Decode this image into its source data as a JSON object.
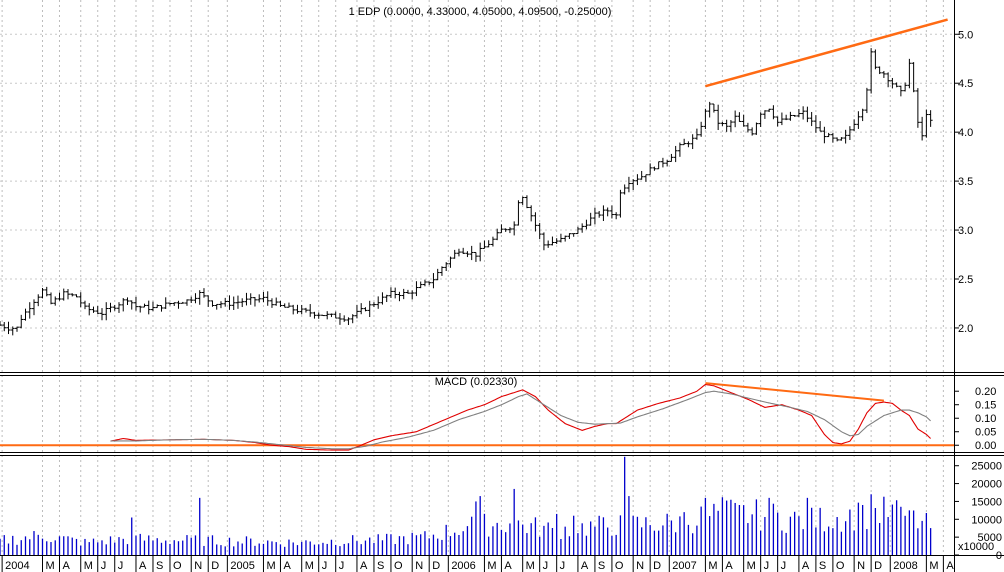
{
  "chart_data": [
    {
      "type": "ohlc",
      "title": "1 EDP (0.0000, 4.33000, 4.05000, 4.09500, -0.25000)",
      "ylim": [
        1.55,
        5.35
      ],
      "yticks": [
        2.0,
        2.5,
        3.0,
        3.5,
        4.0,
        4.5,
        5.0
      ],
      "grid": true,
      "trendline": {
        "from": [
          166,
          4.47
        ],
        "to": [
          223,
          5.15
        ],
        "color": "#ff6a13"
      },
      "anchors": [
        [
          0,
          2.03
        ],
        [
          2,
          2.0
        ],
        [
          4,
          2.0
        ],
        [
          5,
          2.1
        ],
        [
          8,
          2.28
        ],
        [
          10,
          2.38
        ],
        [
          12,
          2.25
        ],
        [
          15,
          2.35
        ],
        [
          18,
          2.32
        ],
        [
          20,
          2.2
        ],
        [
          24,
          2.15
        ],
        [
          26,
          2.2
        ],
        [
          28,
          2.25
        ],
        [
          30,
          2.3
        ],
        [
          32,
          2.22
        ],
        [
          36,
          2.2
        ],
        [
          40,
          2.25
        ],
        [
          44,
          2.28
        ],
        [
          47,
          2.35
        ],
        [
          50,
          2.25
        ],
        [
          54,
          2.25
        ],
        [
          58,
          2.28
        ],
        [
          62,
          2.3
        ],
        [
          66,
          2.22
        ],
        [
          70,
          2.18
        ],
        [
          74,
          2.15
        ],
        [
          78,
          2.12
        ],
        [
          82,
          2.1
        ],
        [
          84,
          2.15
        ],
        [
          88,
          2.25
        ],
        [
          92,
          2.35
        ],
        [
          96,
          2.35
        ],
        [
          98,
          2.4
        ],
        [
          102,
          2.5
        ],
        [
          104,
          2.62
        ],
        [
          108,
          2.8
        ],
        [
          112,
          2.75
        ],
        [
          116,
          2.9
        ],
        [
          118,
          3.0
        ],
        [
          121,
          3.05
        ],
        [
          122,
          3.3
        ],
        [
          123,
          3.35
        ],
        [
          124,
          3.25
        ],
        [
          126,
          3.05
        ],
        [
          128,
          2.85
        ],
        [
          132,
          2.9
        ],
        [
          136,
          3.0
        ],
        [
          140,
          3.15
        ],
        [
          143,
          3.2
        ],
        [
          145,
          3.15
        ],
        [
          146,
          3.4
        ],
        [
          148,
          3.5
        ],
        [
          151,
          3.55
        ],
        [
          154,
          3.65
        ],
        [
          157,
          3.72
        ],
        [
          160,
          3.85
        ],
        [
          162,
          3.9
        ],
        [
          164,
          3.95
        ],
        [
          166,
          4.2
        ],
        [
          167,
          4.3
        ],
        [
          169,
          4.1
        ],
        [
          171,
          4.05
        ],
        [
          173,
          4.15
        ],
        [
          175,
          4.05
        ],
        [
          177,
          4.0
        ],
        [
          179,
          4.2
        ],
        [
          181,
          4.25
        ],
        [
          183,
          4.1
        ],
        [
          186,
          4.15
        ],
        [
          189,
          4.2
        ],
        [
          191,
          4.1
        ],
        [
          193,
          4.0
        ],
        [
          195,
          3.95
        ],
        [
          197,
          3.9
        ],
        [
          199,
          3.95
        ],
        [
          201,
          4.1
        ],
        [
          203,
          4.25
        ],
        [
          204,
          4.45
        ],
        [
          205,
          4.8
        ],
        [
          206,
          4.65
        ],
        [
          208,
          4.6
        ],
        [
          210,
          4.5
        ],
        [
          212,
          4.4
        ],
        [
          213,
          4.5
        ],
        [
          214,
          4.7
        ],
        [
          215,
          4.4
        ],
        [
          216,
          4.1
        ],
        [
          217,
          3.95
        ],
        [
          218,
          4.2
        ],
        [
          219,
          4.1
        ]
      ]
    },
    {
      "type": "line",
      "title": "MACD (0.02330)",
      "ylim": [
        -0.025,
        0.26
      ],
      "yticks": [
        "0.20",
        "0.15",
        "0.10",
        "0.05",
        "0.00"
      ],
      "zero_line_color": "#ff6a13",
      "trendline": {
        "from": [
          166,
          0.23
        ],
        "to": [
          208,
          0.165
        ],
        "color": "#ff6a13"
      },
      "series": [
        {
          "color": "#e00000",
          "anchors": [
            [
              26,
              0.015
            ],
            [
              29,
              0.025
            ],
            [
              32,
              0.018
            ],
            [
              40,
              0.02
            ],
            [
              48,
              0.022
            ],
            [
              55,
              0.018
            ],
            [
              60,
              0.01
            ],
            [
              64,
              0.0
            ],
            [
              68,
              -0.005
            ],
            [
              72,
              -0.015
            ],
            [
              78,
              -0.018
            ],
            [
              82,
              -0.018
            ],
            [
              85,
              0.0
            ],
            [
              88,
              0.02
            ],
            [
              92,
              0.035
            ],
            [
              98,
              0.05
            ],
            [
              104,
              0.09
            ],
            [
              110,
              0.13
            ],
            [
              114,
              0.15
            ],
            [
              118,
              0.18
            ],
            [
              121,
              0.195
            ],
            [
              123,
              0.205
            ],
            [
              126,
              0.18
            ],
            [
              129,
              0.13
            ],
            [
              133,
              0.08
            ],
            [
              137,
              0.055
            ],
            [
              140,
              0.07
            ],
            [
              143,
              0.08
            ],
            [
              145,
              0.08
            ],
            [
              147,
              0.1
            ],
            [
              150,
              0.13
            ],
            [
              155,
              0.155
            ],
            [
              160,
              0.175
            ],
            [
              164,
              0.2
            ],
            [
              166,
              0.225
            ],
            [
              168,
              0.22
            ],
            [
              172,
              0.195
            ],
            [
              176,
              0.17
            ],
            [
              180,
              0.14
            ],
            [
              184,
              0.15
            ],
            [
              188,
              0.13
            ],
            [
              191,
              0.11
            ],
            [
              194,
              0.04
            ],
            [
              196,
              0.01
            ],
            [
              198,
              0.005
            ],
            [
              200,
              0.015
            ],
            [
              202,
              0.06
            ],
            [
              204,
              0.12
            ],
            [
              206,
              0.155
            ],
            [
              208,
              0.16
            ],
            [
              210,
              0.155
            ],
            [
              212,
              0.13
            ],
            [
              214,
              0.11
            ],
            [
              216,
              0.06
            ],
            [
              218,
              0.04
            ],
            [
              219,
              0.025
            ]
          ]
        },
        {
          "color": "#808080",
          "anchors": [
            [
              26,
              0.016
            ],
            [
              32,
              0.016
            ],
            [
              40,
              0.02
            ],
            [
              48,
              0.022
            ],
            [
              55,
              0.018
            ],
            [
              60,
              0.012
            ],
            [
              66,
              0.002
            ],
            [
              72,
              -0.008
            ],
            [
              78,
              -0.013
            ],
            [
              82,
              -0.013
            ],
            [
              86,
              -0.004
            ],
            [
              90,
              0.012
            ],
            [
              96,
              0.03
            ],
            [
              102,
              0.055
            ],
            [
              108,
              0.095
            ],
            [
              114,
              0.125
            ],
            [
              118,
              0.15
            ],
            [
              122,
              0.18
            ],
            [
              124,
              0.19
            ],
            [
              128,
              0.15
            ],
            [
              132,
              0.11
            ],
            [
              136,
              0.085
            ],
            [
              140,
              0.078
            ],
            [
              146,
              0.082
            ],
            [
              150,
              0.105
            ],
            [
              156,
              0.135
            ],
            [
              162,
              0.17
            ],
            [
              166,
              0.195
            ],
            [
              168,
              0.2
            ],
            [
              172,
              0.19
            ],
            [
              176,
              0.175
            ],
            [
              180,
              0.16
            ],
            [
              186,
              0.14
            ],
            [
              190,
              0.125
            ],
            [
              194,
              0.095
            ],
            [
              198,
              0.05
            ],
            [
              200,
              0.035
            ],
            [
              202,
              0.04
            ],
            [
              204,
              0.07
            ],
            [
              208,
              0.11
            ],
            [
              212,
              0.13
            ],
            [
              214,
              0.13
            ],
            [
              216,
              0.12
            ],
            [
              218,
              0.105
            ],
            [
              219,
              0.09
            ]
          ]
        }
      ]
    },
    {
      "type": "bar",
      "title": "",
      "ylim": [
        0,
        28000
      ],
      "yticks": [
        "25000",
        "20000",
        "15000",
        "10000",
        "5000",
        "0"
      ],
      "unit_label": "x10000",
      "color": "#0000cc",
      "levels": [
        [
          0,
          4000
        ],
        [
          10,
          5500
        ],
        [
          20,
          3500
        ],
        [
          30,
          4500
        ],
        [
          40,
          4200
        ],
        [
          50,
          4000
        ],
        [
          60,
          3800
        ],
        [
          70,
          3500
        ],
        [
          80,
          4000
        ],
        [
          90,
          4200
        ],
        [
          100,
          5000
        ],
        [
          110,
          8000
        ],
        [
          120,
          9000
        ],
        [
          130,
          7000
        ],
        [
          140,
          8000
        ],
        [
          150,
          8500
        ],
        [
          160,
          9000
        ],
        [
          170,
          12000
        ],
        [
          180,
          11000
        ],
        [
          190,
          9500
        ],
        [
          200,
          11000
        ],
        [
          210,
          12000
        ],
        [
          219,
          8000
        ]
      ],
      "spikes": [
        [
          31,
          10500
        ],
        [
          47,
          16000
        ],
        [
          112,
          15000
        ],
        [
          113,
          16500
        ],
        [
          121,
          18500
        ],
        [
          131,
          11500
        ],
        [
          135,
          11000
        ],
        [
          147,
          27500
        ],
        [
          148,
          16500
        ],
        [
          161,
          12000
        ],
        [
          166,
          16000
        ],
        [
          174,
          14000
        ],
        [
          181,
          16000
        ],
        [
          190,
          16000
        ],
        [
          203,
          14000
        ],
        [
          205,
          17000
        ],
        [
          212,
          13500
        ],
        [
          214,
          12500
        ]
      ]
    }
  ],
  "x_axis": {
    "labels": [
      {
        "text": "2004",
        "w": 0.5
      },
      {
        "text": "M",
        "w": 10
      },
      {
        "text": "A",
        "w": 14
      },
      {
        "text": "M",
        "w": 19
      },
      {
        "text": "J",
        "w": 23
      },
      {
        "text": "J",
        "w": 27
      },
      {
        "text": "A",
        "w": 32
      },
      {
        "text": "S",
        "w": 36
      },
      {
        "text": "O",
        "w": 40
      },
      {
        "text": "N",
        "w": 45
      },
      {
        "text": "D",
        "w": 49
      },
      {
        "text": "2005",
        "w": 53.5
      },
      {
        "text": "M",
        "w": 62
      },
      {
        "text": "A",
        "w": 66
      },
      {
        "text": "M",
        "w": 71
      },
      {
        "text": "J",
        "w": 75
      },
      {
        "text": "J",
        "w": 79
      },
      {
        "text": "A",
        "w": 84
      },
      {
        "text": "S",
        "w": 88
      },
      {
        "text": "O",
        "w": 92
      },
      {
        "text": "N",
        "w": 97
      },
      {
        "text": "D",
        "w": 101
      },
      {
        "text": "2006",
        "w": 105.5
      },
      {
        "text": "M",
        "w": 114
      },
      {
        "text": "A",
        "w": 118
      },
      {
        "text": "M",
        "w": 123
      },
      {
        "text": "J",
        "w": 127
      },
      {
        "text": "J",
        "w": 131
      },
      {
        "text": "A",
        "w": 136
      },
      {
        "text": "S",
        "w": 140
      },
      {
        "text": "O",
        "w": 144
      },
      {
        "text": "N",
        "w": 149
      },
      {
        "text": "D",
        "w": 153
      },
      {
        "text": "2007",
        "w": 157.5
      },
      {
        "text": "M",
        "w": 166
      },
      {
        "text": "A",
        "w": 170
      },
      {
        "text": "M",
        "w": 175
      },
      {
        "text": "J",
        "w": 179
      },
      {
        "text": "J",
        "w": 183
      },
      {
        "text": "A",
        "w": 188
      },
      {
        "text": "S",
        "w": 192
      },
      {
        "text": "O",
        "w": 196
      },
      {
        "text": "N",
        "w": 201
      },
      {
        "text": "D",
        "w": 205
      },
      {
        "text": "2008",
        "w": 209.5
      },
      {
        "text": "M",
        "w": 218
      },
      {
        "text": "A",
        "w": 222
      }
    ],
    "week_min": 0,
    "week_max": 224.5
  }
}
